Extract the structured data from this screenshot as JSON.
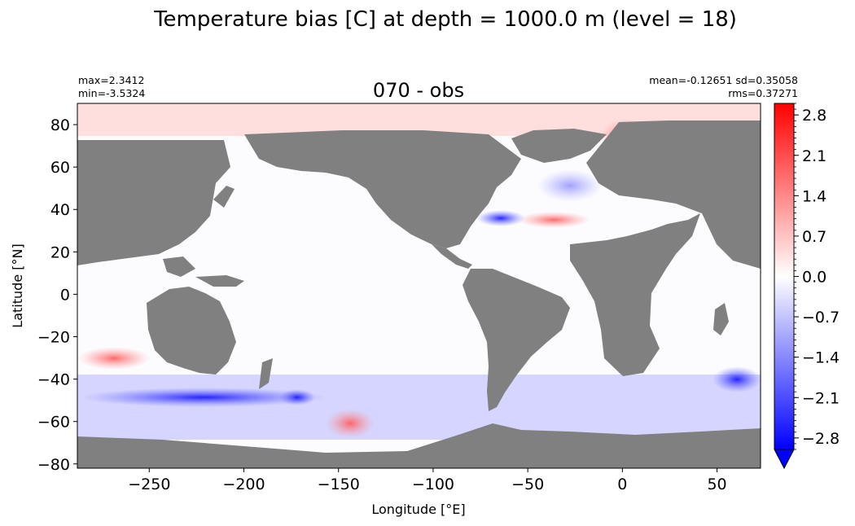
{
  "chart_data": {
    "type": "heatmap",
    "suptitle": "Temperature bias [C] at depth = 1000.0 m (level = 18)",
    "title": "070 - obs",
    "stats_left": [
      "max=2.3412",
      "min=-3.5324"
    ],
    "stats_right": [
      "mean=-0.12651 sd=0.35058",
      "rms=0.37271"
    ],
    "xlabel": "Longitude [°E]",
    "ylabel": "Latitude [°N]",
    "xlim": [
      -288,
      73
    ],
    "ylim": [
      -82,
      90
    ],
    "xticks": [
      -250,
      -200,
      -150,
      -100,
      -50,
      0,
      50
    ],
    "xtick_labels": [
      "−250",
      "−200",
      "−150",
      "−100",
      "−50",
      "0",
      "50"
    ],
    "yticks": [
      80,
      60,
      40,
      20,
      0,
      -20,
      -40,
      -60,
      -80
    ],
    "ytick_labels": [
      "80",
      "60",
      "40",
      "20",
      "0",
      "−20",
      "−40",
      "−60",
      "−80"
    ],
    "colorbar": {
      "min": -3.0,
      "max": 3.0,
      "extend": "min",
      "ticks": [
        2.8,
        2.1,
        1.4,
        0.7,
        0.0,
        -0.7,
        -1.4,
        -2.1,
        -2.8
      ],
      "tick_labels": [
        "2.8",
        "2.1",
        "1.4",
        "0.7",
        "0.0",
        "−0.7",
        "−1.4",
        "−2.1",
        "−2.8"
      ],
      "colors": [
        "#0000ff",
        "#ffffff",
        "#ff0000"
      ]
    },
    "land_color": "#808080",
    "ocean_color": "#fcfcff"
  }
}
